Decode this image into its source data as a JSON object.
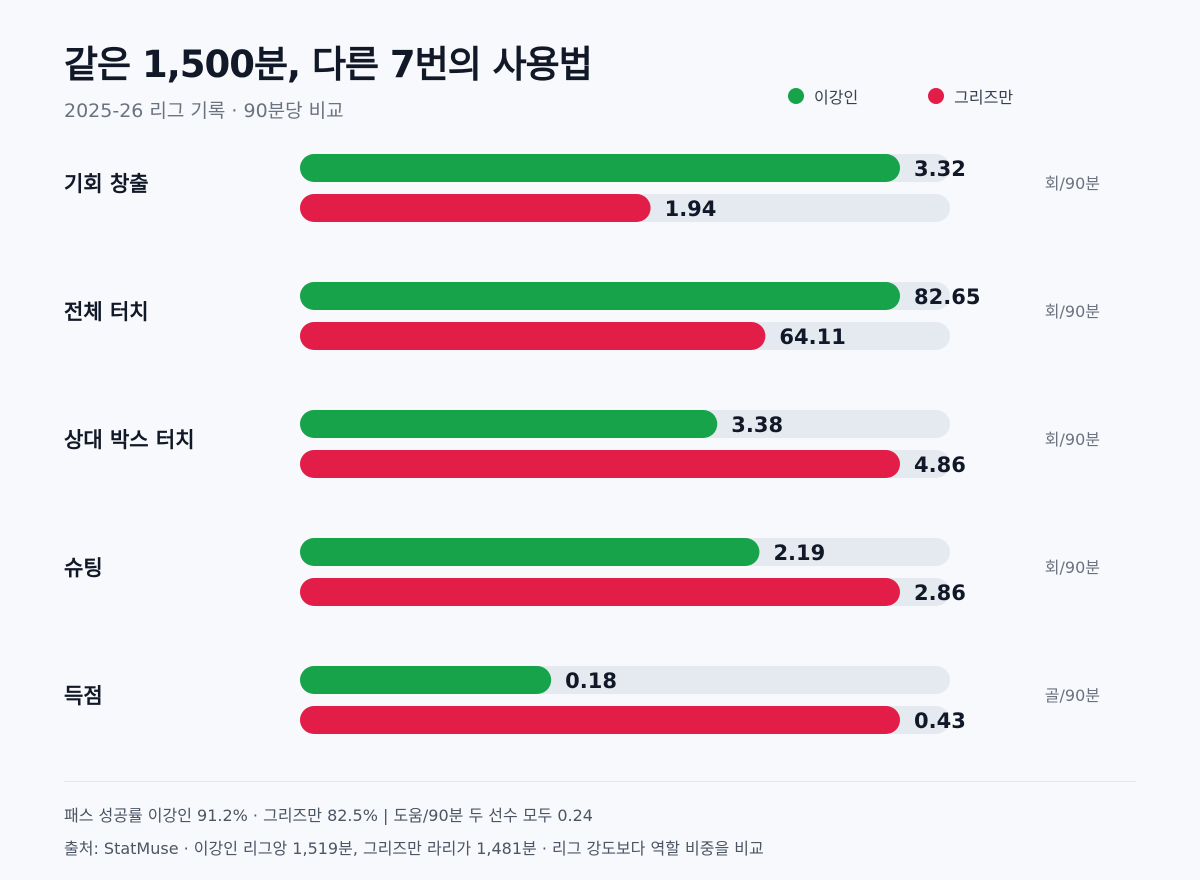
{
  "header": {
    "title": "같은 1,500분, 다른 7번의 사용법",
    "subtitle": "2025-26 리그 기록 · 90분당 비교"
  },
  "legend": [
    {
      "label": "이강인",
      "color": "#16a34a"
    },
    {
      "label": "그리즈만",
      "color": "#e11d48"
    }
  ],
  "chart_data": {
    "type": "bar",
    "orientation": "horizontal",
    "categories": [
      "기회 창출",
      "전체 터치",
      "상대 박스 터치",
      "슈팅",
      "득점"
    ],
    "units": [
      "회/90분",
      "회/90분",
      "회/90분",
      "회/90분",
      "골/90분"
    ],
    "series": [
      {
        "name": "이강인",
        "color": "#16a34a",
        "values": [
          3.32,
          82.65,
          3.38,
          2.19,
          0.18
        ]
      },
      {
        "name": "그리즈만",
        "color": "#e11d48",
        "values": [
          1.94,
          64.11,
          4.86,
          2.86,
          0.43
        ]
      }
    ],
    "value_labels": [
      [
        "3.32",
        "1.94"
      ],
      [
        "82.65",
        "64.11"
      ],
      [
        "3.38",
        "4.86"
      ],
      [
        "2.19",
        "2.86"
      ],
      [
        "0.18",
        "0.43"
      ]
    ],
    "scale": "each metric scaled to its own maximum"
  },
  "footer": {
    "note": "패스 성공률 이강인 91.2% · 그리즈만 82.5% | 도움/90분 두 선수 모두 0.24",
    "source": "출처: StatMuse · 이강인 리그앙 1,519분, 그리즈만 라리가 1,481분 · 리그 강도보다 역할 비중을 비교"
  }
}
